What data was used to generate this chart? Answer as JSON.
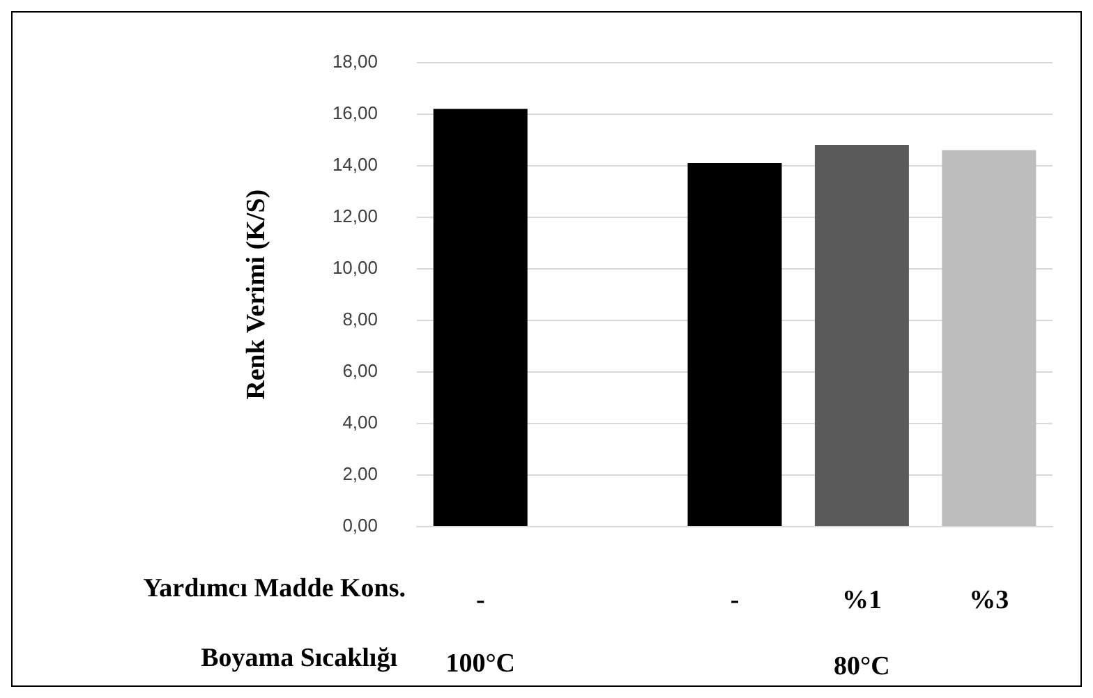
{
  "chart_data": {
    "type": "bar",
    "ylabel": "Renk Verimi (K/S)",
    "categories": [
      "-",
      null,
      "-",
      "%1",
      "%3"
    ],
    "values": [
      16.2,
      null,
      14.1,
      14.8,
      14.6
    ],
    "colors": [
      "#000000",
      "#000000",
      "#000000",
      "#5a5a5a",
      "#bdbdbd"
    ],
    "ylim": [
      0,
      18
    ],
    "yticks": [
      {
        "value": 0,
        "label": "0,00"
      },
      {
        "value": 2,
        "label": "2,00"
      },
      {
        "value": 4,
        "label": "4,00"
      },
      {
        "value": 6,
        "label": "6,00"
      },
      {
        "value": 8,
        "label": "8,00"
      },
      {
        "value": 10,
        "label": "10,00"
      },
      {
        "value": 12,
        "label": "12,00"
      },
      {
        "value": 14,
        "label": "14,00"
      },
      {
        "value": 16,
        "label": "16,00"
      },
      {
        "value": 18,
        "label": "18,00"
      }
    ],
    "grid": "y",
    "legend": false,
    "annotations": [
      "Yardımcı Madde Kons.",
      "Boyama Sıcaklığı",
      "100°C",
      "80°C"
    ]
  }
}
